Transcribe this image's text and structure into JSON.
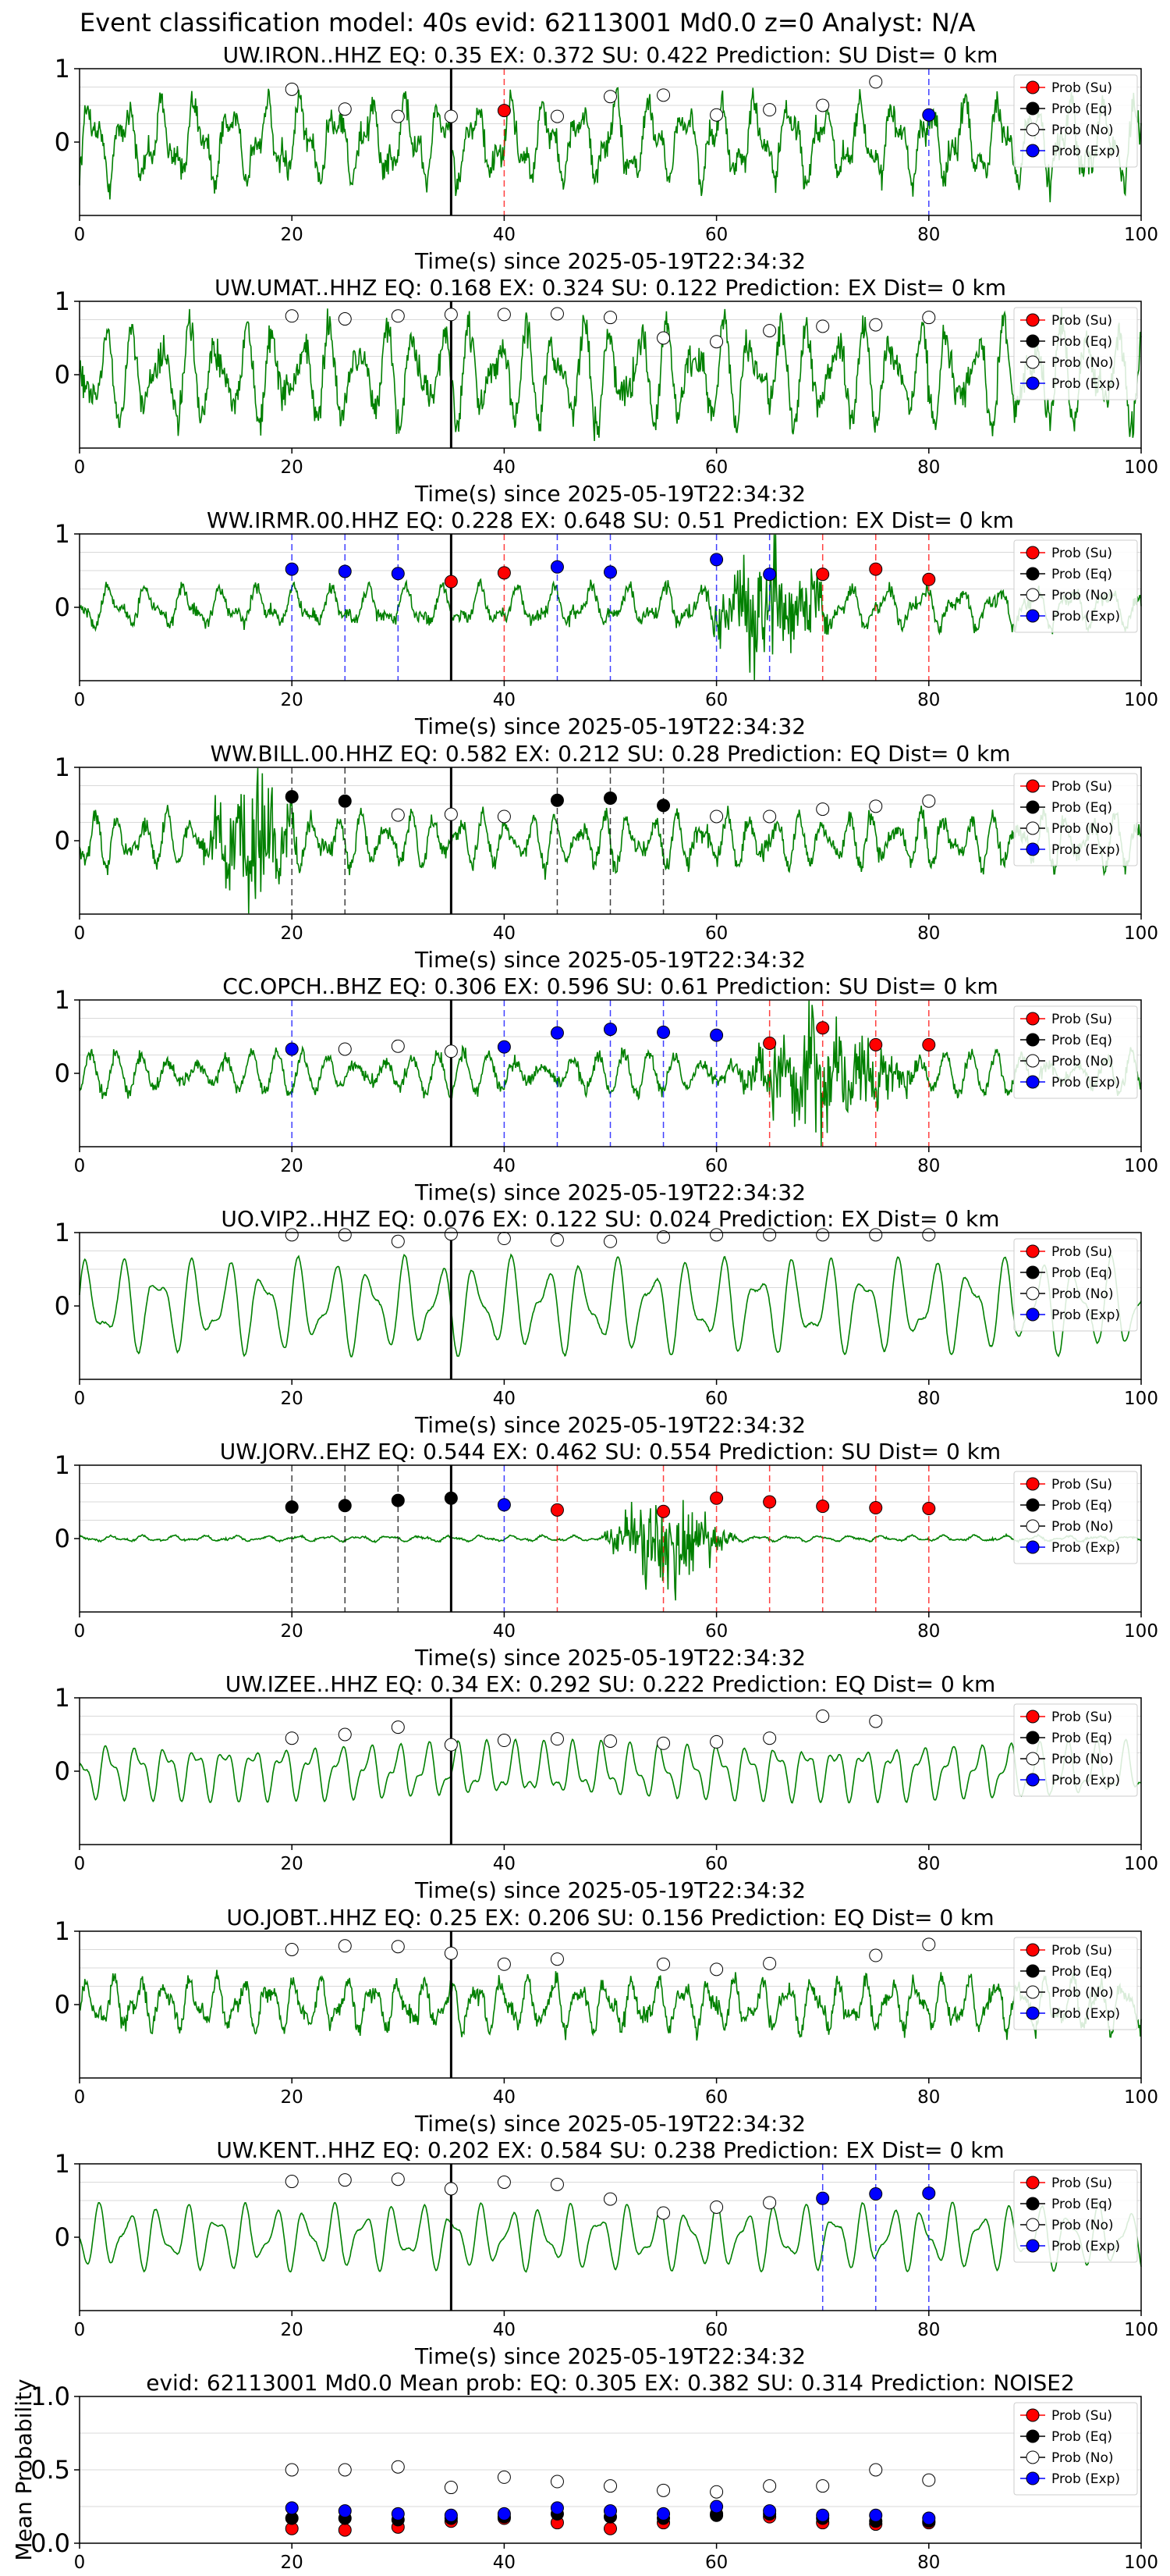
{
  "suptitle": "Event classification model: 40s evid: 62113001 Md0.0 z=0 Analyst: N/A",
  "xlabel": "Time(s) since 2025-05-19T22:34:32",
  "legend": [
    "Prob (Su)",
    "Prob (Eq)",
    "Prob (No)",
    "Prob (Exp)"
  ],
  "colors": {
    "su": "#ff0000",
    "eq": "#000000",
    "no": "#ffffff",
    "exp": "#0000ff",
    "waveform": "#008000",
    "grid": "#d9d9d9"
  },
  "chart_data": [
    {
      "type": "line",
      "title": "UW.IRON..HHZ   EQ: 0.35  EX: 0.372  SU: 0.422   Prediction: SU    Dist= 0 km",
      "xlim": [
        0,
        100
      ],
      "ylim": [
        -1,
        1
      ],
      "yticks": [
        "1",
        "0"
      ],
      "xticks": [
        "0",
        "20",
        "40",
        "60",
        "80",
        "100"
      ],
      "vline_black": 35,
      "amp": 0.7,
      "points": [
        {
          "x": 20,
          "y": 0.72,
          "cls": "no"
        },
        {
          "x": 25,
          "y": 0.45,
          "cls": "no"
        },
        {
          "x": 30,
          "y": 0.35,
          "cls": "no"
        },
        {
          "x": 35,
          "y": 0.35,
          "cls": "no"
        },
        {
          "x": 40,
          "y": 0.43,
          "cls": "su"
        },
        {
          "x": 45,
          "y": 0.35,
          "cls": "no"
        },
        {
          "x": 50,
          "y": 0.62,
          "cls": "no"
        },
        {
          "x": 55,
          "y": 0.64,
          "cls": "no"
        },
        {
          "x": 60,
          "y": 0.37,
          "cls": "no"
        },
        {
          "x": 65,
          "y": 0.44,
          "cls": "no"
        },
        {
          "x": 70,
          "y": 0.5,
          "cls": "no"
        },
        {
          "x": 75,
          "y": 0.82,
          "cls": "no"
        },
        {
          "x": 80,
          "y": 0.37,
          "cls": "exp"
        }
      ]
    },
    {
      "type": "line",
      "title": "UW.UMAT..HHZ   EQ: 0.168  EX: 0.324  SU: 0.122   Prediction: EX    Dist= 0 km",
      "xlim": [
        0,
        100
      ],
      "ylim": [
        -1,
        1
      ],
      "yticks": [
        "1",
        "0"
      ],
      "xticks": [
        "0",
        "20",
        "40",
        "60",
        "80",
        "100"
      ],
      "vline_black": 35,
      "amp": 0.85,
      "points": [
        {
          "x": 20,
          "y": 0.8,
          "cls": "no"
        },
        {
          "x": 25,
          "y": 0.76,
          "cls": "no"
        },
        {
          "x": 30,
          "y": 0.8,
          "cls": "no"
        },
        {
          "x": 35,
          "y": 0.82,
          "cls": "no"
        },
        {
          "x": 40,
          "y": 0.82,
          "cls": "no"
        },
        {
          "x": 45,
          "y": 0.83,
          "cls": "no"
        },
        {
          "x": 50,
          "y": 0.78,
          "cls": "no"
        },
        {
          "x": 55,
          "y": 0.5,
          "cls": "no"
        },
        {
          "x": 60,
          "y": 0.45,
          "cls": "no"
        },
        {
          "x": 65,
          "y": 0.6,
          "cls": "no"
        },
        {
          "x": 70,
          "y": 0.66,
          "cls": "no"
        },
        {
          "x": 75,
          "y": 0.68,
          "cls": "no"
        },
        {
          "x": 80,
          "y": 0.78,
          "cls": "no"
        }
      ]
    },
    {
      "type": "line",
      "title": "WW.IRMR.00.HHZ   EQ: 0.228  EX: 0.648  SU: 0.51   Prediction: EX    Dist= 0 km",
      "xlim": [
        0,
        100
      ],
      "ylim": [
        -1,
        1
      ],
      "yticks": [
        "1",
        "0"
      ],
      "xticks": [
        "0",
        "20",
        "40",
        "60",
        "80",
        "100"
      ],
      "vline_black": 35,
      "amp": 0.35,
      "burst": [
        58,
        72,
        0.95
      ],
      "points": [
        {
          "x": 20,
          "y": 0.52,
          "cls": "exp"
        },
        {
          "x": 25,
          "y": 0.49,
          "cls": "exp"
        },
        {
          "x": 30,
          "y": 0.46,
          "cls": "exp"
        },
        {
          "x": 35,
          "y": 0.35,
          "cls": "su"
        },
        {
          "x": 40,
          "y": 0.47,
          "cls": "su"
        },
        {
          "x": 45,
          "y": 0.55,
          "cls": "exp"
        },
        {
          "x": 50,
          "y": 0.48,
          "cls": "exp"
        },
        {
          "x": 60,
          "y": 0.65,
          "cls": "exp"
        },
        {
          "x": 65,
          "y": 0.45,
          "cls": "exp"
        },
        {
          "x": 70,
          "y": 0.45,
          "cls": "su"
        },
        {
          "x": 75,
          "y": 0.52,
          "cls": "su"
        },
        {
          "x": 80,
          "y": 0.38,
          "cls": "su"
        }
      ]
    },
    {
      "type": "line",
      "title": "WW.BILL.00.HHZ   EQ: 0.582  EX: 0.212  SU: 0.28   Prediction: EQ    Dist= 0 km",
      "xlim": [
        0,
        100
      ],
      "ylim": [
        -1,
        1
      ],
      "yticks": [
        "1",
        "0"
      ],
      "xticks": [
        "0",
        "20",
        "40",
        "60",
        "80",
        "100"
      ],
      "vline_black": 35,
      "amp": 0.45,
      "burst": [
        11,
        22,
        0.95
      ],
      "points": [
        {
          "x": 20,
          "y": 0.6,
          "cls": "eq"
        },
        {
          "x": 25,
          "y": 0.54,
          "cls": "eq"
        },
        {
          "x": 30,
          "y": 0.35,
          "cls": "no"
        },
        {
          "x": 35,
          "y": 0.36,
          "cls": "no"
        },
        {
          "x": 40,
          "y": 0.33,
          "cls": "no"
        },
        {
          "x": 45,
          "y": 0.55,
          "cls": "eq"
        },
        {
          "x": 50,
          "y": 0.58,
          "cls": "eq"
        },
        {
          "x": 55,
          "y": 0.48,
          "cls": "eq"
        },
        {
          "x": 60,
          "y": 0.33,
          "cls": "no"
        },
        {
          "x": 65,
          "y": 0.33,
          "cls": "no"
        },
        {
          "x": 70,
          "y": 0.43,
          "cls": "no"
        },
        {
          "x": 75,
          "y": 0.47,
          "cls": "no"
        },
        {
          "x": 80,
          "y": 0.54,
          "cls": "no"
        }
      ]
    },
    {
      "type": "line",
      "title": "CC.OPCH..BHZ   EQ: 0.306  EX: 0.596  SU: 0.61   Prediction: SU    Dist= 0 km",
      "xlim": [
        0,
        100
      ],
      "ylim": [
        -1,
        1
      ],
      "yticks": [
        "1",
        "0"
      ],
      "xticks": [
        "0",
        "20",
        "40",
        "60",
        "80",
        "100"
      ],
      "vline_black": 35,
      "amp": 0.35,
      "burst": [
        60,
        80,
        0.85
      ],
      "points": [
        {
          "x": 20,
          "y": 0.33,
          "cls": "exp"
        },
        {
          "x": 25,
          "y": 0.33,
          "cls": "no"
        },
        {
          "x": 30,
          "y": 0.37,
          "cls": "no"
        },
        {
          "x": 35,
          "y": 0.3,
          "cls": "no"
        },
        {
          "x": 40,
          "y": 0.36,
          "cls": "exp"
        },
        {
          "x": 45,
          "y": 0.55,
          "cls": "exp"
        },
        {
          "x": 50,
          "y": 0.6,
          "cls": "exp"
        },
        {
          "x": 55,
          "y": 0.56,
          "cls": "exp"
        },
        {
          "x": 60,
          "y": 0.52,
          "cls": "exp"
        },
        {
          "x": 65,
          "y": 0.41,
          "cls": "su"
        },
        {
          "x": 70,
          "y": 0.62,
          "cls": "su"
        },
        {
          "x": 75,
          "y": 0.39,
          "cls": "su"
        },
        {
          "x": 80,
          "y": 0.39,
          "cls": "su"
        }
      ]
    },
    {
      "type": "line",
      "title": "UO.VIP2..HHZ   EQ: 0.076  EX: 0.122  SU: 0.024   Prediction: EX    Dist= 0 km",
      "xlim": [
        0,
        100
      ],
      "ylim": [
        -1,
        1
      ],
      "yticks": [
        "1",
        "0"
      ],
      "xticks": [
        "0",
        "20",
        "40",
        "60",
        "80",
        "100"
      ],
      "vline_black": 35,
      "amp": 0.85,
      "smooth": true,
      "points": [
        {
          "x": 20,
          "y": 0.97,
          "cls": "no"
        },
        {
          "x": 25,
          "y": 0.97,
          "cls": "no"
        },
        {
          "x": 30,
          "y": 0.88,
          "cls": "no"
        },
        {
          "x": 35,
          "y": 0.98,
          "cls": "no"
        },
        {
          "x": 40,
          "y": 0.92,
          "cls": "no"
        },
        {
          "x": 45,
          "y": 0.9,
          "cls": "no"
        },
        {
          "x": 50,
          "y": 0.88,
          "cls": "no"
        },
        {
          "x": 55,
          "y": 0.94,
          "cls": "no"
        },
        {
          "x": 60,
          "y": 0.97,
          "cls": "no"
        },
        {
          "x": 65,
          "y": 0.97,
          "cls": "no"
        },
        {
          "x": 70,
          "y": 0.97,
          "cls": "no"
        },
        {
          "x": 75,
          "y": 0.97,
          "cls": "no"
        },
        {
          "x": 80,
          "y": 0.97,
          "cls": "no"
        }
      ]
    },
    {
      "type": "line",
      "title": "UW.JORV..EHZ   EQ: 0.544  EX: 0.462  SU: 0.554   Prediction: SU    Dist= 0 km",
      "xlim": [
        0,
        100
      ],
      "ylim": [
        -1,
        1
      ],
      "yticks": [
        "1",
        "0"
      ],
      "xticks": [
        "0",
        "20",
        "40",
        "60",
        "80",
        "100"
      ],
      "vline_black": 35,
      "amp": 0.05,
      "burst": [
        49,
        62,
        0.95
      ],
      "points": [
        {
          "x": 20,
          "y": 0.43,
          "cls": "eq"
        },
        {
          "x": 25,
          "y": 0.45,
          "cls": "eq"
        },
        {
          "x": 30,
          "y": 0.52,
          "cls": "eq"
        },
        {
          "x": 35,
          "y": 0.55,
          "cls": "eq"
        },
        {
          "x": 40,
          "y": 0.46,
          "cls": "exp"
        },
        {
          "x": 45,
          "y": 0.39,
          "cls": "su"
        },
        {
          "x": 55,
          "y": 0.37,
          "cls": "su"
        },
        {
          "x": 60,
          "y": 0.55,
          "cls": "su"
        },
        {
          "x": 65,
          "y": 0.5,
          "cls": "su"
        },
        {
          "x": 70,
          "y": 0.44,
          "cls": "su"
        },
        {
          "x": 75,
          "y": 0.42,
          "cls": "su"
        },
        {
          "x": 80,
          "y": 0.41,
          "cls": "su"
        }
      ]
    },
    {
      "type": "line",
      "title": "UW.IZEE..HHZ   EQ: 0.34  EX: 0.292  SU: 0.222   Prediction: EQ    Dist= 0 km",
      "xlim": [
        0,
        100
      ],
      "ylim": [
        -1,
        1
      ],
      "yticks": [
        "1",
        "0"
      ],
      "xticks": [
        "0",
        "20",
        "40",
        "60",
        "80",
        "100"
      ],
      "vline_black": 35,
      "amp": 0.55,
      "smooth": true,
      "points": [
        {
          "x": 20,
          "y": 0.45,
          "cls": "no"
        },
        {
          "x": 25,
          "y": 0.5,
          "cls": "no"
        },
        {
          "x": 30,
          "y": 0.6,
          "cls": "no"
        },
        {
          "x": 35,
          "y": 0.36,
          "cls": "no"
        },
        {
          "x": 40,
          "y": 0.42,
          "cls": "no"
        },
        {
          "x": 45,
          "y": 0.44,
          "cls": "no"
        },
        {
          "x": 50,
          "y": 0.41,
          "cls": "no"
        },
        {
          "x": 55,
          "y": 0.38,
          "cls": "no"
        },
        {
          "x": 60,
          "y": 0.4,
          "cls": "no"
        },
        {
          "x": 65,
          "y": 0.45,
          "cls": "no"
        },
        {
          "x": 70,
          "y": 0.75,
          "cls": "no"
        },
        {
          "x": 75,
          "y": 0.68,
          "cls": "no"
        }
      ]
    },
    {
      "type": "line",
      "title": "UO.JOBT..HHZ   EQ: 0.25  EX: 0.206  SU: 0.156   Prediction: EQ    Dist= 0 km",
      "xlim": [
        0,
        100
      ],
      "ylim": [
        -1,
        1
      ],
      "yticks": [
        "1",
        "0"
      ],
      "xticks": [
        "0",
        "20",
        "40",
        "60",
        "80",
        "100"
      ],
      "vline_black": 35,
      "amp": 0.45,
      "points": [
        {
          "x": 20,
          "y": 0.75,
          "cls": "no"
        },
        {
          "x": 25,
          "y": 0.8,
          "cls": "no"
        },
        {
          "x": 30,
          "y": 0.79,
          "cls": "no"
        },
        {
          "x": 35,
          "y": 0.7,
          "cls": "no"
        },
        {
          "x": 40,
          "y": 0.55,
          "cls": "no"
        },
        {
          "x": 45,
          "y": 0.62,
          "cls": "no"
        },
        {
          "x": 55,
          "y": 0.55,
          "cls": "no"
        },
        {
          "x": 60,
          "y": 0.48,
          "cls": "no"
        },
        {
          "x": 65,
          "y": 0.56,
          "cls": "no"
        },
        {
          "x": 75,
          "y": 0.67,
          "cls": "no"
        },
        {
          "x": 80,
          "y": 0.82,
          "cls": "no"
        }
      ]
    },
    {
      "type": "line",
      "title": "UW.KENT..HHZ   EQ: 0.202  EX: 0.584  SU: 0.238   Prediction: EX    Dist= 0 km",
      "xlim": [
        0,
        100
      ],
      "ylim": [
        -1,
        1
      ],
      "yticks": [
        "1",
        "0"
      ],
      "xticks": [
        "0",
        "20",
        "40",
        "60",
        "80",
        "100"
      ],
      "vline_black": 35,
      "amp": 0.6,
      "smooth": true,
      "points": [
        {
          "x": 20,
          "y": 0.76,
          "cls": "no"
        },
        {
          "x": 25,
          "y": 0.78,
          "cls": "no"
        },
        {
          "x": 30,
          "y": 0.79,
          "cls": "no"
        },
        {
          "x": 35,
          "y": 0.66,
          "cls": "no"
        },
        {
          "x": 40,
          "y": 0.75,
          "cls": "no"
        },
        {
          "x": 45,
          "y": 0.72,
          "cls": "no"
        },
        {
          "x": 50,
          "y": 0.52,
          "cls": "no"
        },
        {
          "x": 55,
          "y": 0.33,
          "cls": "no"
        },
        {
          "x": 60,
          "y": 0.41,
          "cls": "no"
        },
        {
          "x": 65,
          "y": 0.47,
          "cls": "no"
        },
        {
          "x": 70,
          "y": 0.53,
          "cls": "exp"
        },
        {
          "x": 75,
          "y": 0.59,
          "cls": "exp"
        },
        {
          "x": 80,
          "y": 0.6,
          "cls": "exp"
        }
      ]
    },
    {
      "type": "scatter",
      "title": "evid: 62113001  Md0.0   Mean prob:   EQ: 0.305  EX: 0.382  SU: 0.314   Prediction: NOISE2",
      "ylabel": "Mean Probability",
      "xlim": [
        0,
        100
      ],
      "ylim": [
        0,
        1
      ],
      "yticks": [
        "1.0",
        "0.5",
        "0.0"
      ],
      "xticks": [
        "0",
        "20",
        "40",
        "60",
        "80",
        "100"
      ],
      "series": [
        {
          "name": "Prob (Su)",
          "cls": "su",
          "x": [
            20,
            25,
            30,
            35,
            40,
            45,
            50,
            55,
            60,
            65,
            70,
            75,
            80
          ],
          "y": [
            0.1,
            0.09,
            0.11,
            0.15,
            0.17,
            0.14,
            0.1,
            0.14,
            0.2,
            0.18,
            0.14,
            0.13,
            0.14
          ]
        },
        {
          "name": "Prob (Eq)",
          "cls": "eq",
          "x": [
            20,
            25,
            30,
            35,
            40,
            45,
            50,
            55,
            60,
            65,
            70,
            75,
            80
          ],
          "y": [
            0.17,
            0.17,
            0.16,
            0.17,
            0.18,
            0.2,
            0.18,
            0.17,
            0.19,
            0.2,
            0.17,
            0.15,
            0.15
          ]
        },
        {
          "name": "Prob (No)",
          "cls": "no",
          "x": [
            20,
            25,
            30,
            35,
            40,
            45,
            50,
            55,
            60,
            65,
            70,
            75,
            80
          ],
          "y": [
            0.5,
            0.5,
            0.52,
            0.38,
            0.45,
            0.42,
            0.39,
            0.36,
            0.35,
            0.39,
            0.39,
            0.5,
            0.43
          ]
        },
        {
          "name": "Prob (Exp)",
          "cls": "exp",
          "x": [
            20,
            25,
            30,
            35,
            40,
            45,
            50,
            55,
            60,
            65,
            70,
            75,
            80
          ],
          "y": [
            0.24,
            0.22,
            0.2,
            0.19,
            0.2,
            0.24,
            0.22,
            0.2,
            0.25,
            0.22,
            0.19,
            0.19,
            0.17
          ]
        }
      ]
    }
  ]
}
